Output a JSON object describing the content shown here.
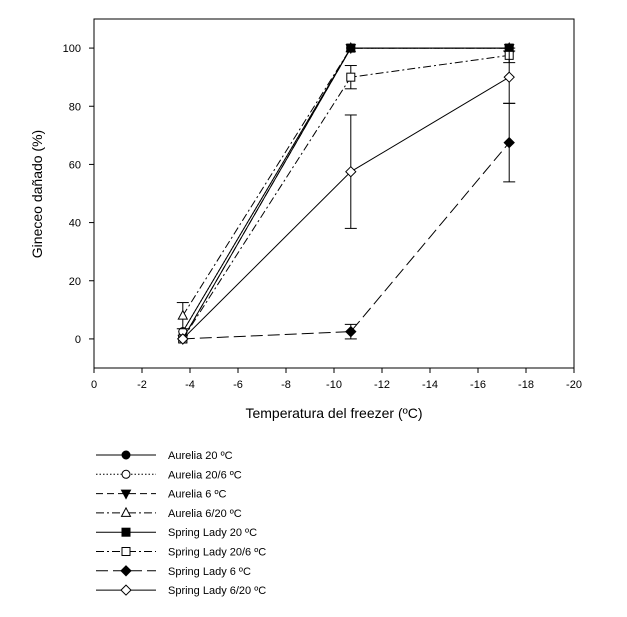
{
  "chart_data": {
    "type": "line",
    "title": "",
    "xlabel": "Temperatura del freezer (ºC)",
    "ylabel": "Gineceo dañado (%)",
    "xlim": [
      0,
      -20
    ],
    "ylim": [
      -10,
      110
    ],
    "xticks": [
      0,
      -2,
      -4,
      -6,
      -8,
      -10,
      -12,
      -14,
      -16,
      -18,
      -20
    ],
    "yticks": [
      0,
      20,
      40,
      60,
      80,
      100
    ],
    "x": [
      -3.7,
      -10.7,
      -17.3
    ],
    "grid": false,
    "legend_position": "bottom-left, below plot",
    "series": [
      {
        "name": "Aurelia 20 ºC",
        "marker": "circle-filled",
        "dash": "solid",
        "values": [
          2.5,
          100,
          100
        ],
        "errors": [
          0,
          0,
          0
        ]
      },
      {
        "name": "Aurelia 20/6 ºC",
        "marker": "circle-open",
        "dash": "dotted",
        "values": [
          2.5,
          100,
          100
        ],
        "errors": [
          0,
          0,
          0
        ]
      },
      {
        "name": "Aurelia 6 ºC",
        "marker": "tri-down-filled",
        "dash": "dashed",
        "values": [
          0,
          100,
          100
        ],
        "errors": [
          0,
          0,
          0
        ]
      },
      {
        "name": "Aurelia 6/20 ºC",
        "marker": "tri-up-open",
        "dash": "dashdot",
        "values": [
          8,
          100,
          100
        ],
        "errors": [
          4.5,
          0,
          0
        ]
      },
      {
        "name": "Spring Lady 20 ºC",
        "marker": "square-filled",
        "dash": "solid",
        "values": [
          0,
          100,
          100
        ],
        "errors": [
          0,
          0,
          0
        ]
      },
      {
        "name": "Spring Lady 20/6 ºC",
        "marker": "square-open",
        "dash": "dashdot",
        "values": [
          0,
          90,
          97.5
        ],
        "errors": [
          0,
          4,
          2.5
        ]
      },
      {
        "name": "Spring Lady 6 ºC",
        "marker": "diamond-filled",
        "dash": "longdash",
        "values": [
          0,
          2.5,
          67.5
        ],
        "errors": [
          0,
          2.5,
          13.5
        ]
      },
      {
        "name": "Spring Lady 6/20 ºC",
        "marker": "diamond-open",
        "dash": "solid",
        "values": [
          0,
          57.5,
          90
        ],
        "errors": [
          0,
          19.5,
          9
        ]
      }
    ]
  }
}
